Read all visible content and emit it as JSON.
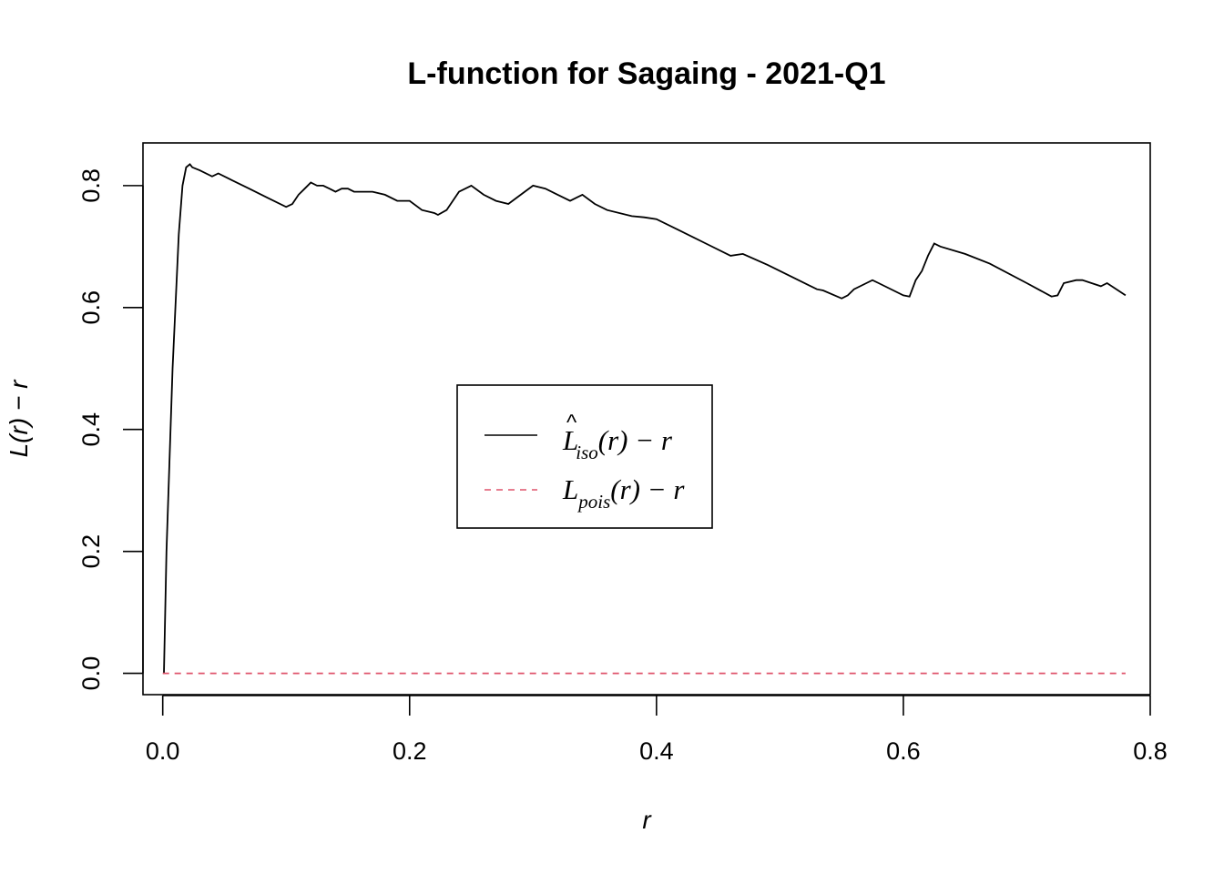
{
  "chart_data": {
    "type": "line",
    "title": "L-function for Sagaing - 2021-Q1",
    "xlabel": "r",
    "ylabel": "L(r) − r",
    "xlim": [
      -0.016,
      0.8
    ],
    "ylim": [
      -0.035,
      0.87
    ],
    "x_ticks": [
      "0.0",
      "0.2",
      "0.4",
      "0.6",
      "0.8"
    ],
    "y_ticks": [
      "0.0",
      "0.2",
      "0.4",
      "0.6",
      "0.8"
    ],
    "grid": false,
    "legend_position": "center",
    "legend": [
      {
        "label": "L̂iso(r) − r",
        "style": "solid",
        "color": "#000000"
      },
      {
        "label": "Lpois(r) − r",
        "style": "dashed",
        "color": "#DF536B"
      }
    ],
    "series": [
      {
        "name": "L̂iso(r) − r",
        "color": "#000000",
        "style": "solid",
        "x": [
          0.001,
          0.003,
          0.008,
          0.013,
          0.016,
          0.019,
          0.022,
          0.024,
          0.03,
          0.04,
          0.045,
          0.055,
          0.07,
          0.085,
          0.1,
          0.105,
          0.11,
          0.115,
          0.12,
          0.125,
          0.13,
          0.135,
          0.14,
          0.145,
          0.15,
          0.155,
          0.16,
          0.165,
          0.17,
          0.18,
          0.19,
          0.2,
          0.21,
          0.22,
          0.223,
          0.23,
          0.24,
          0.25,
          0.26,
          0.27,
          0.28,
          0.29,
          0.3,
          0.31,
          0.32,
          0.33,
          0.34,
          0.35,
          0.36,
          0.38,
          0.39,
          0.4,
          0.42,
          0.44,
          0.46,
          0.47,
          0.49,
          0.51,
          0.53,
          0.535,
          0.55,
          0.555,
          0.56,
          0.57,
          0.575,
          0.58,
          0.6,
          0.605,
          0.61,
          0.615,
          0.62,
          0.625,
          0.63,
          0.65,
          0.67,
          0.7,
          0.72,
          0.725,
          0.73,
          0.74,
          0.745,
          0.76,
          0.765,
          0.78
        ],
        "y": [
          0.0,
          0.2,
          0.5,
          0.72,
          0.8,
          0.83,
          0.835,
          0.83,
          0.825,
          0.815,
          0.82,
          0.81,
          0.795,
          0.78,
          0.765,
          0.77,
          0.785,
          0.795,
          0.805,
          0.8,
          0.8,
          0.795,
          0.79,
          0.795,
          0.795,
          0.79,
          0.79,
          0.79,
          0.79,
          0.785,
          0.775,
          0.775,
          0.76,
          0.755,
          0.752,
          0.76,
          0.79,
          0.8,
          0.785,
          0.775,
          0.77,
          0.785,
          0.8,
          0.795,
          0.785,
          0.775,
          0.785,
          0.77,
          0.76,
          0.75,
          0.748,
          0.745,
          0.725,
          0.705,
          0.685,
          0.688,
          0.67,
          0.65,
          0.63,
          0.628,
          0.615,
          0.62,
          0.63,
          0.64,
          0.645,
          0.64,
          0.62,
          0.618,
          0.645,
          0.66,
          0.685,
          0.705,
          0.7,
          0.688,
          0.672,
          0.64,
          0.618,
          0.62,
          0.64,
          0.645,
          0.645,
          0.635,
          0.64,
          0.62
        ]
      },
      {
        "name": "Lpois(r) − r",
        "color": "#DF536B",
        "style": "dashed",
        "x": [
          0.0,
          0.78
        ],
        "y": [
          0.0,
          0.0
        ]
      }
    ]
  }
}
